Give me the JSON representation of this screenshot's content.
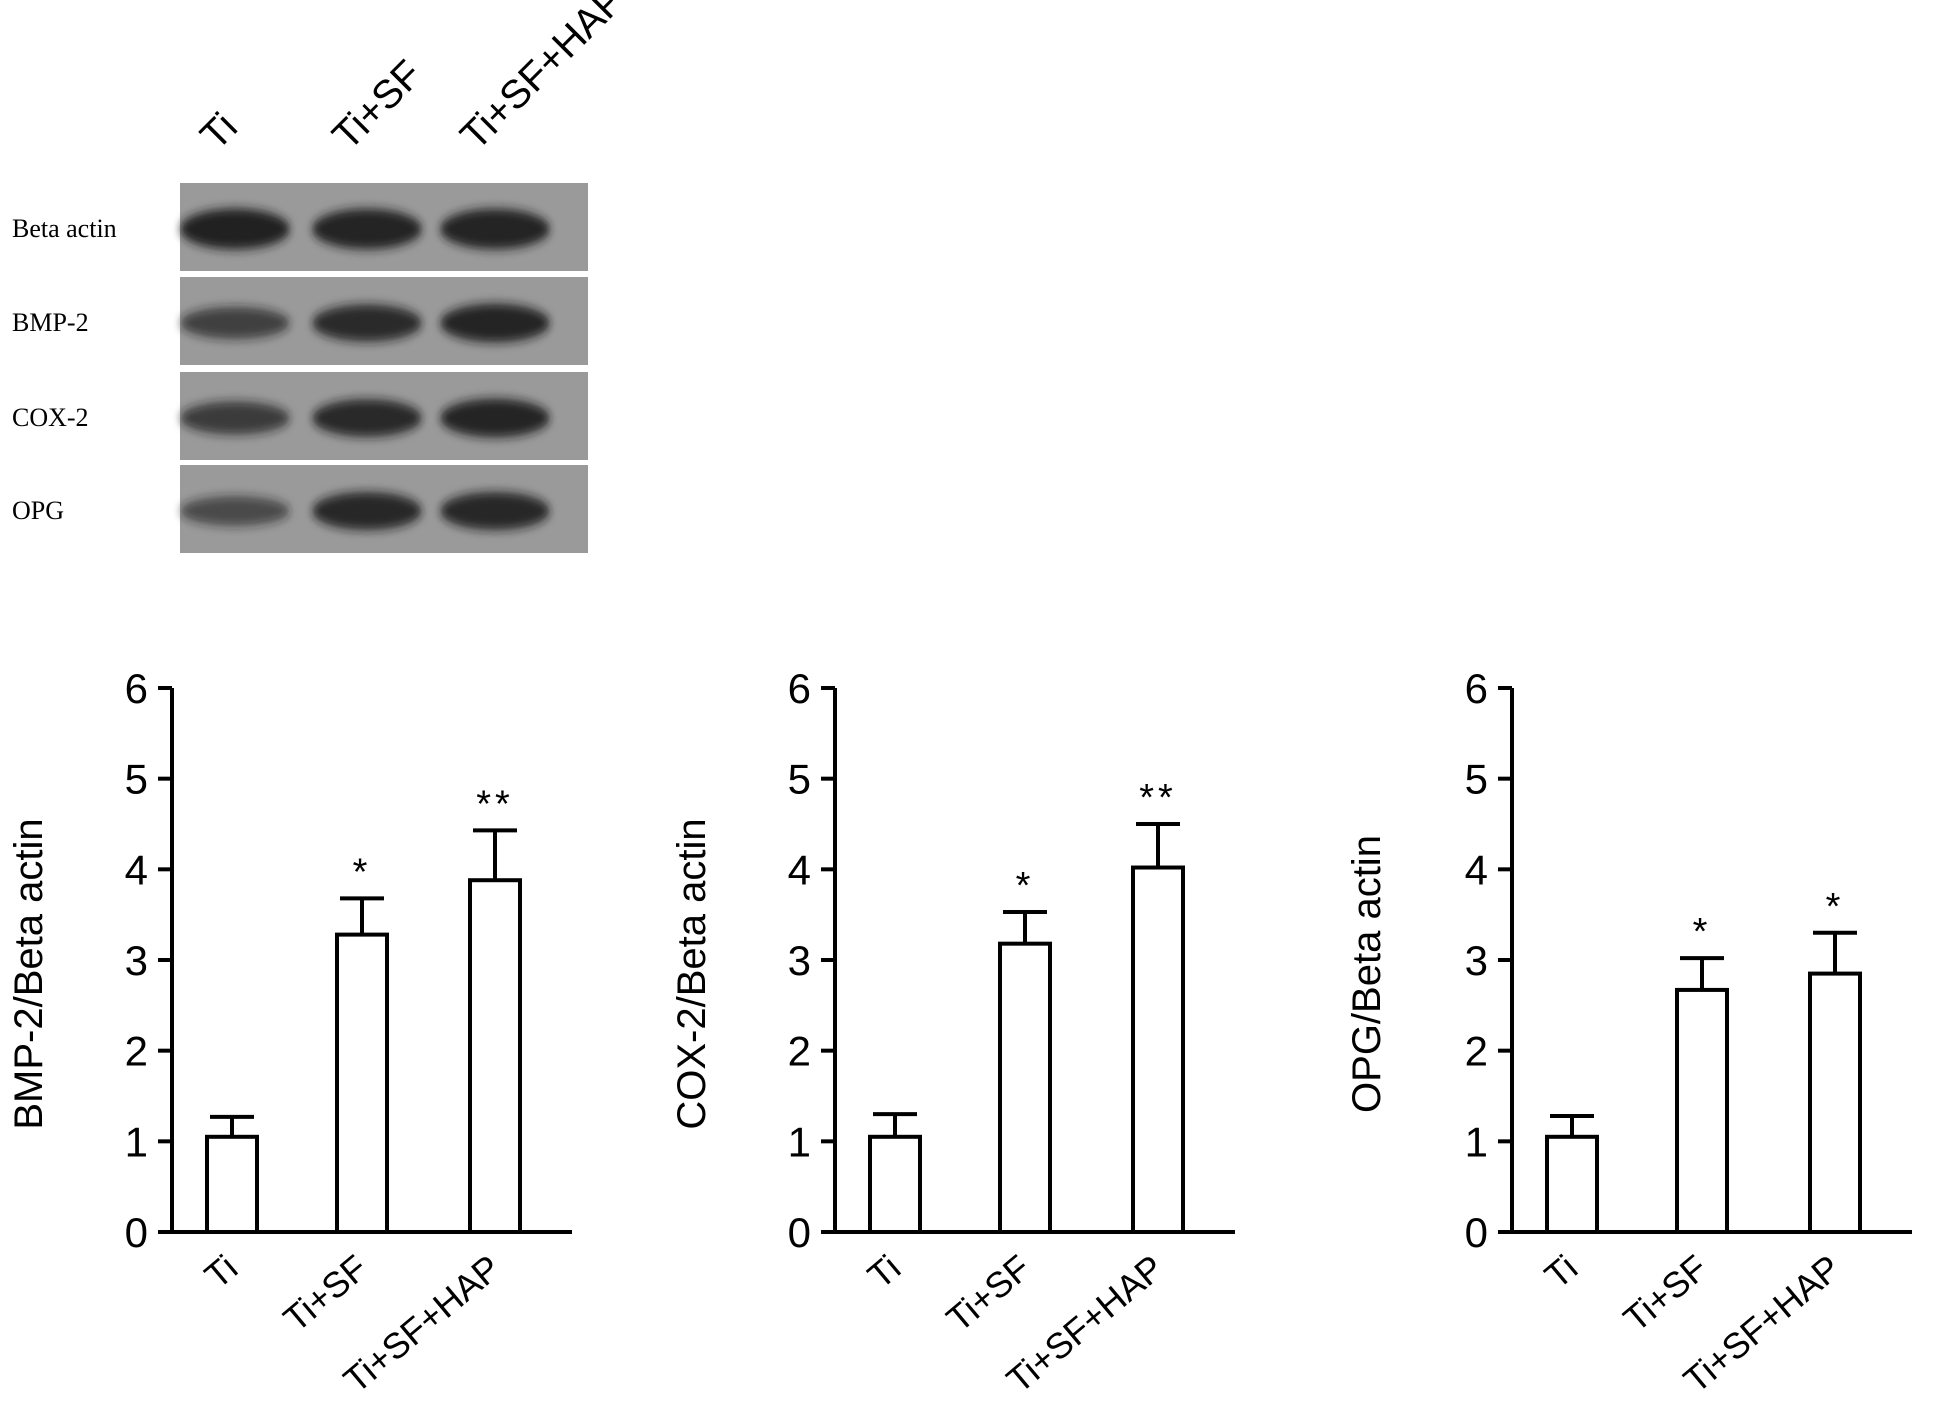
{
  "blot": {
    "lane_labels": [
      "Ti",
      "Ti+SF",
      "Ti+SF+HAP"
    ],
    "rows": [
      {
        "label": "Beta actin",
        "intensity": [
          0.95,
          0.93,
          0.93
        ]
      },
      {
        "label": "BMP-2",
        "intensity": [
          0.55,
          0.78,
          0.85
        ]
      },
      {
        "label": "COX-2",
        "intensity": [
          0.6,
          0.8,
          0.85
        ]
      },
      {
        "label": "OPG",
        "intensity": [
          0.45,
          0.82,
          0.82
        ]
      }
    ],
    "colors": {
      "membrane": "#9a9a9a",
      "band": "#1a1a1a",
      "separator": "#ffffff"
    }
  },
  "chart_data": [
    {
      "type": "bar",
      "categories": [
        "Ti",
        "Ti+SF",
        "Ti+SF+HAP"
      ],
      "values": [
        1.05,
        3.28,
        3.88
      ],
      "errors": [
        0.22,
        0.4,
        0.55
      ],
      "annotations": [
        "",
        "*",
        "**"
      ],
      "title": "",
      "xlabel": "",
      "ylabel": "BMP-2/Beta actin",
      "ylim": [
        0,
        6
      ],
      "yticks": [
        "0",
        "1",
        "2",
        "3",
        "4",
        "5",
        "6"
      ],
      "grid": false
    },
    {
      "type": "bar",
      "categories": [
        "Ti",
        "Ti+SF",
        "Ti+SF+HAP"
      ],
      "values": [
        1.05,
        3.18,
        4.02
      ],
      "errors": [
        0.25,
        0.35,
        0.48
      ],
      "annotations": [
        "",
        "*",
        "**"
      ],
      "title": "",
      "xlabel": "",
      "ylabel": "COX-2/Beta actin",
      "ylim": [
        0,
        6
      ],
      "yticks": [
        "0",
        "1",
        "2",
        "3",
        "4",
        "5",
        "6"
      ],
      "grid": false
    },
    {
      "type": "bar",
      "categories": [
        "Ti",
        "Ti+SF",
        "Ti+SF+HAP"
      ],
      "values": [
        1.05,
        2.67,
        2.85
      ],
      "errors": [
        0.23,
        0.35,
        0.45
      ],
      "annotations": [
        "",
        "*",
        "*"
      ],
      "title": "",
      "xlabel": "",
      "ylabel": "OPG/Beta actin",
      "ylim": [
        0,
        6
      ],
      "yticks": [
        "0",
        "1",
        "2",
        "3",
        "4",
        "5",
        "6"
      ],
      "grid": false
    }
  ],
  "colors": {
    "axis": "#000000",
    "bar_fill": "#ffffff",
    "bar_stroke": "#000000"
  }
}
